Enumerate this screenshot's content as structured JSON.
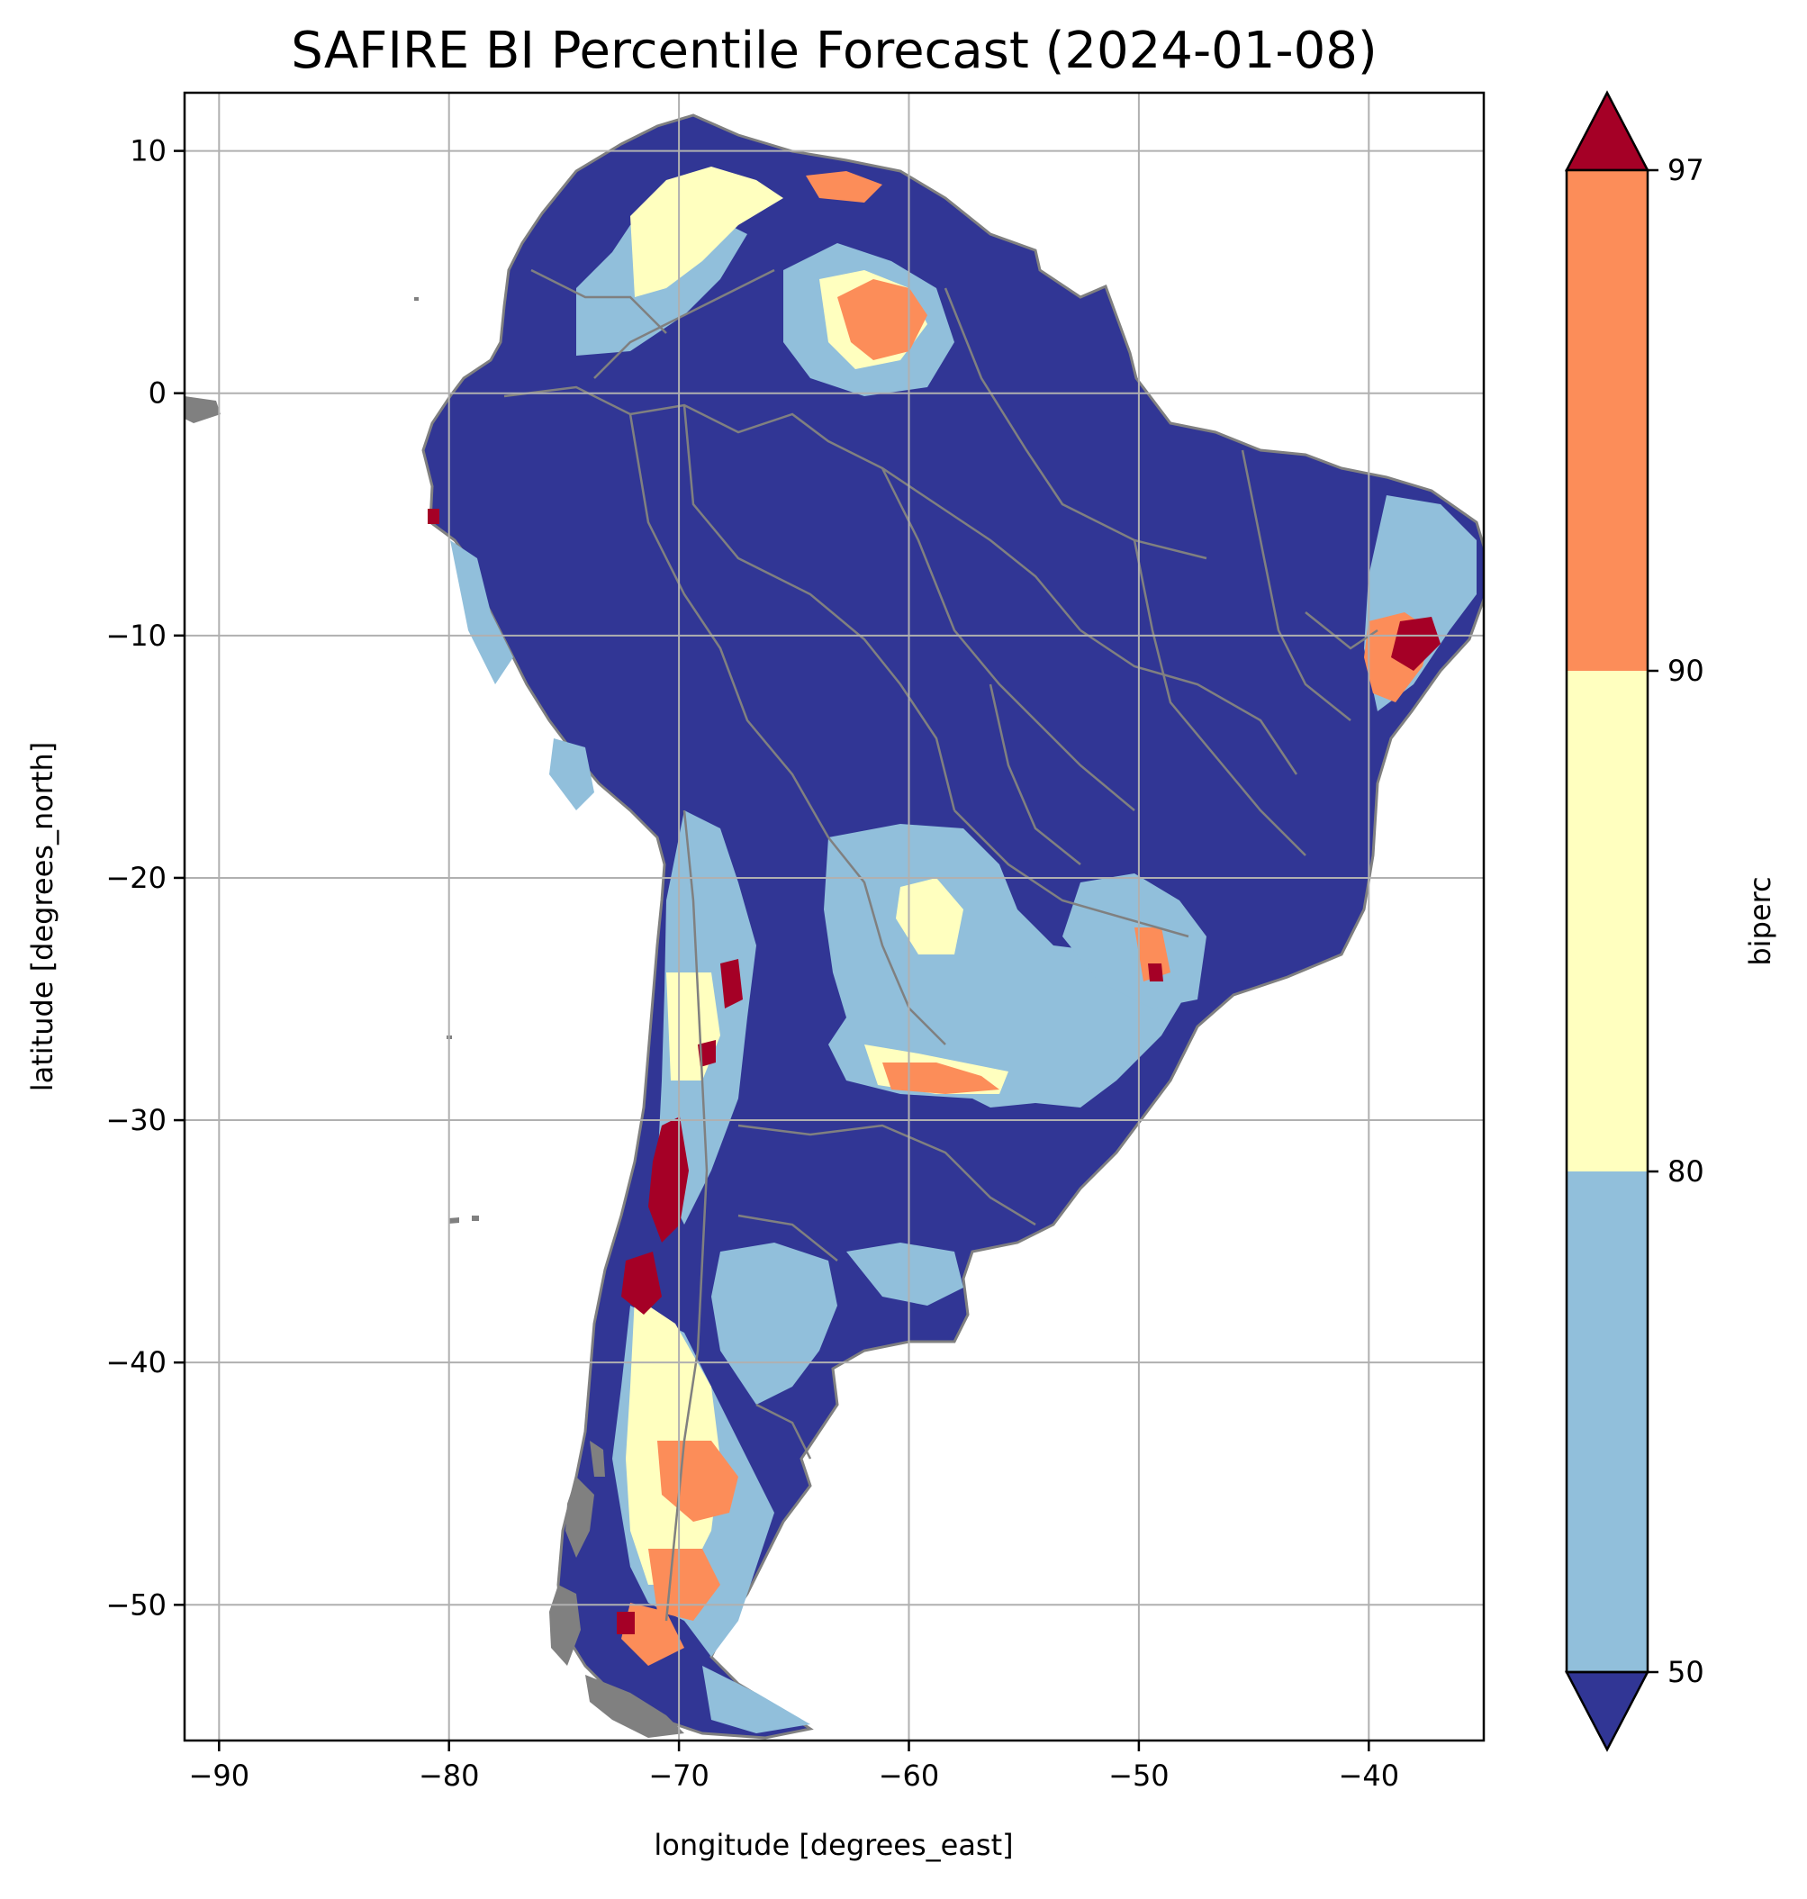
{
  "title": "SAFIRE BI Percentile Forecast (2024-01-08)",
  "map": {
    "xlabel": "longitude [degrees_east]",
    "ylabel": "latitude [degrees_north]",
    "xlim": [
      -91.5,
      -35
    ],
    "ylim": [
      -55.6,
      12.4
    ],
    "xticks": [
      -90,
      -80,
      -70,
      -60,
      -50,
      -40
    ],
    "yticks": [
      10,
      0,
      -10,
      -20,
      -30,
      -40,
      -50
    ],
    "grid": true,
    "border_color": "#808080"
  },
  "colorbar": {
    "label": "biperc",
    "ticks": [
      "97",
      "90",
      "80",
      "50"
    ],
    "levels": [
      50,
      80,
      90,
      97
    ],
    "colors": {
      "below_50": "#313695",
      "50_80": "#91bfdb",
      "80_90": "#ffffbf",
      "90_97": "#fc8d59",
      "above_97": "#a50026"
    }
  }
}
